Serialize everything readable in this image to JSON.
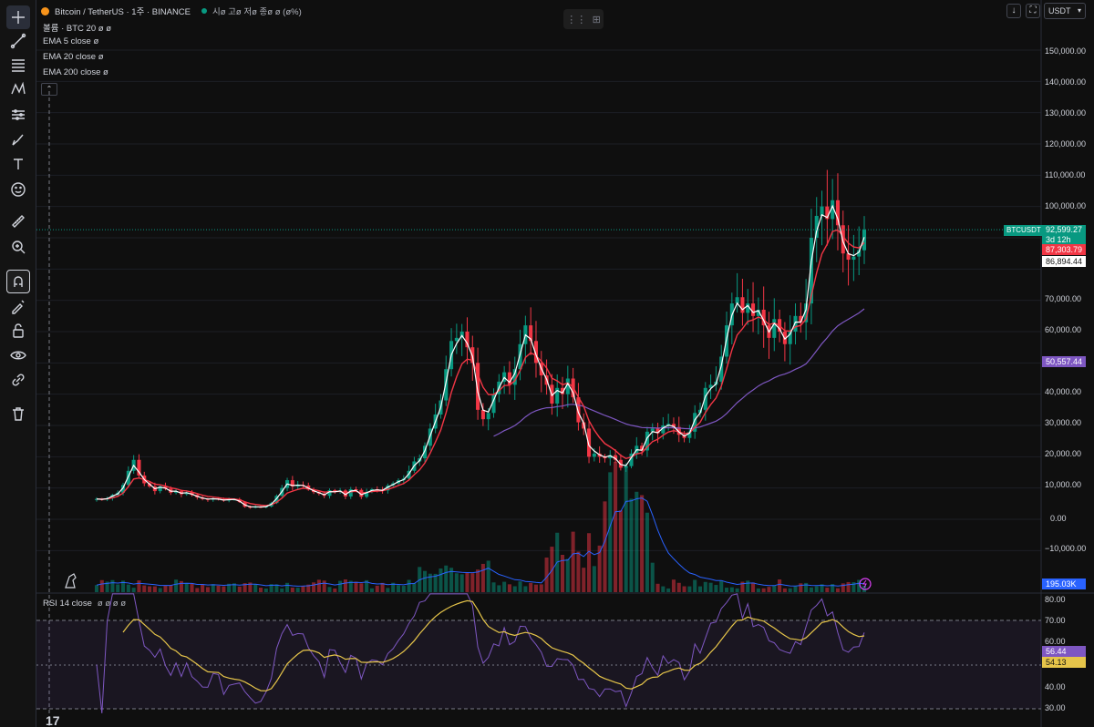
{
  "header": {
    "symbol_title": "Bitcoin / TetherUS · 1주 · BINANCE",
    "ohlc": "시ø 고ø 저ø 종ø ø (ø%)",
    "volume_legend": "볼륨 · BTC 20  ø  ø",
    "ema_5": "EMA 5 close  ø",
    "ema_20": "EMA 20 close  ø",
    "ema_200": "EMA 200 close  ø",
    "rsi_legend": "RSI 14 close",
    "rsi_values": "ø ø ø ø",
    "currency": "USDT",
    "collapse_glyph": "⌃"
  },
  "price_axis": {
    "ticks": [
      "150,000.00",
      "140,000.00",
      "130,000.00",
      "120,000.00",
      "110,000.00",
      "100,000.00",
      "80,000.00",
      "70,000.00",
      "60,000.00",
      "50,000.00",
      "40,000.00",
      "30,000.00",
      "20,000.00",
      "10,000.00",
      "0.00",
      "−10,000.00"
    ],
    "last_symbol": "BTCUSDT",
    "last_price": "92,599.27",
    "countdown": "3d 12h",
    "ema20_price": "87,303.79",
    "ema5_price": "86,894.44",
    "ema200_price": "50,557.44",
    "volume_value": "195.03K"
  },
  "rsi_axis": {
    "ticks": [
      "80.00",
      "70.00",
      "60.00",
      "40.00",
      "30.00"
    ],
    "rsi_value": "56.44",
    "rsi_ma_value": "54.13"
  },
  "colors": {
    "up": "#089981",
    "down": "#f23645",
    "ema5": "#ffffff",
    "ema20": "#f23645",
    "ema200": "#7e57c2",
    "rsi": "#7e57c2",
    "rsi_ma": "#e6c54a",
    "volume_ma": "#2962ff"
  },
  "icons": [
    "crosshair-icon",
    "trendline-icon",
    "fib-icon",
    "pattern-icon",
    "forecast-icon",
    "brush-icon",
    "text-icon",
    "emoji-icon",
    "ruler-icon",
    "zoom-icon",
    "magnet-icon",
    "lock-drawing-icon",
    "lock-icon",
    "eye-icon",
    "link-icon",
    "trash-icon"
  ],
  "chart_data": {
    "type": "candlestick",
    "title": "Bitcoin / TetherUS · 1주 · BINANCE",
    "y_range": [
      -10000,
      155000
    ],
    "ema_prices": {
      "ema5": 86894.44,
      "ema20": 87303.79,
      "ema200": 50557.44
    },
    "last_close": 92599.27,
    "closes": [
      6500,
      6300,
      6700,
      7800,
      8500,
      11000,
      15500,
      19000,
      14000,
      11500,
      10500,
      9000,
      10500,
      9800,
      8500,
      9000,
      8000,
      8600,
      7800,
      7000,
      6500,
      6300,
      6600,
      6400,
      6000,
      6300,
      6400,
      5500,
      4000,
      3700,
      4000,
      3900,
      4100,
      5200,
      7500,
      10000,
      12500,
      10500,
      11000,
      10800,
      9500,
      8700,
      8200,
      7500,
      9300,
      8800,
      9200,
      7300,
      9600,
      9400,
      7200,
      8800,
      9600,
      9500,
      9200,
      10800,
      11500,
      12500,
      13000,
      15500,
      18500,
      19500,
      23500,
      29000,
      33500,
      38000,
      48000,
      57000,
      58000,
      60000,
      55000,
      50000,
      35000,
      32000,
      34000,
      40000,
      44000,
      47000,
      43000,
      48000,
      56000,
      62000,
      57000,
      50000,
      46000,
      43000,
      37000,
      42000,
      40000,
      45000,
      39000,
      31000,
      29000,
      20000,
      21000,
      20000,
      19500,
      20500,
      19000,
      16500,
      17000,
      21000,
      23500,
      22000,
      28000,
      29000,
      27500,
      30000,
      30500,
      29500,
      27000,
      26000,
      28000,
      34000,
      35000,
      42000,
      43000,
      44000,
      52000,
      62000,
      69000,
      71000,
      66000,
      69000,
      65000,
      67000,
      62000,
      58000,
      64000,
      60000,
      56000,
      60000,
      65000,
      63000,
      69000,
      90000,
      97000,
      100000,
      96000,
      102000,
      94000,
      85000,
      83000,
      84000,
      86000,
      92600
    ],
    "rsi_levels": {
      "upper": 70,
      "middle": 50,
      "lower": 30,
      "current": 56.44,
      "ma": 54.13
    }
  }
}
